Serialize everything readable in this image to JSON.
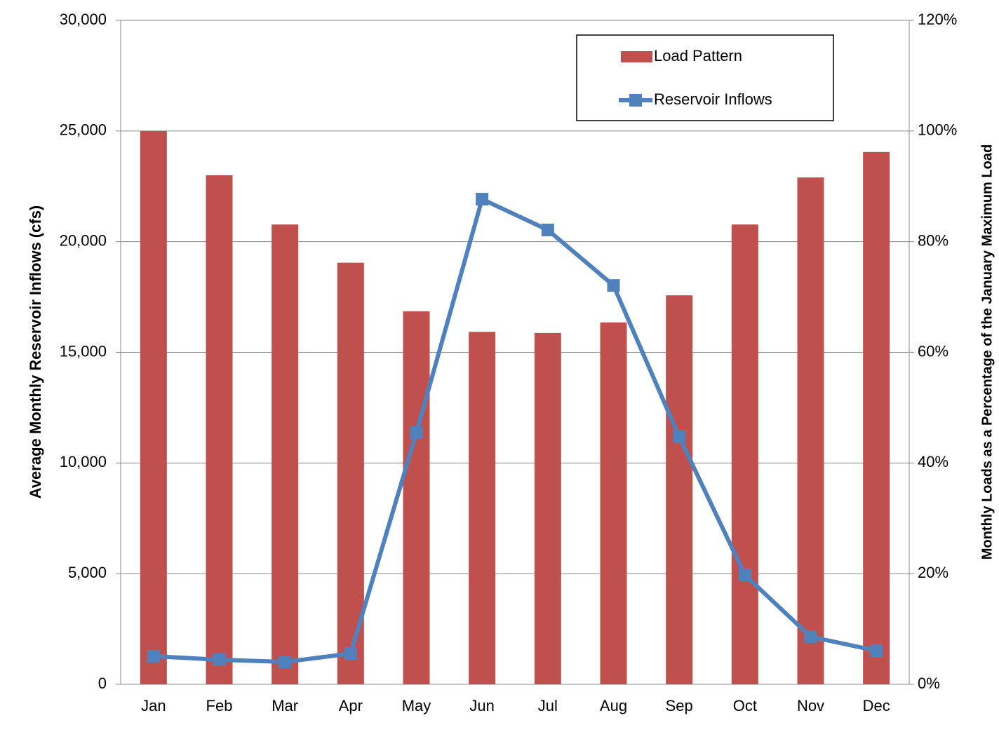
{
  "chart_data": {
    "type": "bar-line",
    "y_label": "Average Monthly Reservoir Inflows (cfs)",
    "y2_label": "Monthly Loads as a Percentage of the January Maximum Load",
    "categories": [
      "Jan",
      "Feb",
      "Mar",
      "Apr",
      "May",
      "Jun",
      "Jul",
      "Aug",
      "Sep",
      "Oct",
      "Nov",
      "Dec"
    ],
    "series": [
      {
        "name": "Load Pattern",
        "type": "bar",
        "axis": "y2",
        "color": "#c0504d",
        "values": [
          100,
          92.0,
          83.1,
          76.2,
          67.4,
          63.7,
          63.5,
          65.4,
          70.3,
          83.1,
          91.6,
          96.2
        ]
      },
      {
        "name": "Reservoir Inflows",
        "type": "line",
        "color": "#4f81bd",
        "values": [
          1270,
          1110,
          1010,
          1390,
          11370,
          21920,
          20530,
          18020,
          11180,
          4940,
          2150,
          1520
        ]
      }
    ],
    "ylim": [
      0,
      30000
    ],
    "yticks": [
      0,
      {
        "value": 5000,
        "label": "5,000"
      },
      {
        "value": 10000,
        "label": "10,000"
      },
      {
        "value": 15000,
        "label": "15,000"
      },
      {
        "value": 20000,
        "label": "20,000"
      },
      {
        "value": 25000,
        "label": "25,000"
      },
      {
        "value": 30000,
        "label": "30,000"
      }
    ],
    "y2lim": [
      0,
      120
    ],
    "y2ticks": [
      {
        "value": 0,
        "label": "0%"
      },
      {
        "value": 20,
        "label": "20%"
      },
      {
        "value": 40,
        "label": "40%"
      },
      {
        "value": 60,
        "label": "60%"
      },
      {
        "value": 80,
        "label": "80%"
      },
      {
        "value": 100,
        "label": "100%"
      },
      {
        "value": 120,
        "label": "120%"
      }
    ],
    "grid": true,
    "legend": "top-right"
  }
}
